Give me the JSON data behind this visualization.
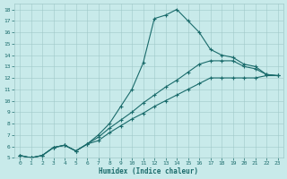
{
  "xlabel": "Humidex (Indice chaleur)",
  "xlim": [
    -0.5,
    23.5
  ],
  "ylim": [
    5,
    18.5
  ],
  "xticks": [
    0,
    1,
    2,
    3,
    4,
    5,
    6,
    7,
    8,
    9,
    10,
    11,
    12,
    13,
    14,
    15,
    16,
    17,
    18,
    19,
    20,
    21,
    22,
    23
  ],
  "yticks": [
    5,
    6,
    7,
    8,
    9,
    10,
    11,
    12,
    13,
    14,
    15,
    16,
    17,
    18
  ],
  "bg_color": "#c8eaea",
  "grid_color": "#a0c8c8",
  "line_color": "#1a6b6b",
  "line1_x": [
    0,
    1,
    2,
    3,
    4,
    5,
    6,
    7,
    8,
    9,
    10,
    11,
    12,
    13,
    14,
    15,
    16,
    17,
    18,
    19,
    20,
    21,
    22,
    23
  ],
  "line1_y": [
    5.2,
    5.0,
    5.2,
    5.9,
    6.1,
    5.6,
    6.2,
    7.0,
    8.0,
    9.5,
    11.0,
    13.3,
    17.2,
    17.5,
    18.0,
    17.0,
    16.0,
    14.5,
    14.0,
    13.8,
    13.2,
    13.0,
    12.3,
    12.2
  ],
  "line2_x": [
    0,
    1,
    2,
    3,
    4,
    5,
    6,
    7,
    8,
    9,
    10,
    11,
    12,
    13,
    14,
    15,
    16,
    17,
    18,
    19,
    20,
    21,
    22,
    23
  ],
  "line2_y": [
    5.2,
    5.0,
    5.2,
    5.9,
    6.1,
    5.6,
    6.2,
    6.8,
    7.6,
    8.3,
    9.0,
    9.8,
    10.5,
    11.2,
    11.8,
    12.5,
    13.2,
    13.5,
    13.5,
    13.5,
    13.0,
    12.8,
    12.3,
    12.2
  ],
  "line3_x": [
    0,
    1,
    2,
    3,
    4,
    5,
    6,
    7,
    8,
    9,
    10,
    11,
    12,
    13,
    14,
    15,
    16,
    17,
    18,
    19,
    20,
    21,
    22,
    23
  ],
  "line3_y": [
    5.2,
    5.0,
    5.2,
    5.9,
    6.1,
    5.6,
    6.2,
    6.5,
    7.2,
    7.8,
    8.4,
    8.9,
    9.5,
    10.0,
    10.5,
    11.0,
    11.5,
    12.0,
    12.0,
    12.0,
    12.0,
    12.0,
    12.2,
    12.2
  ]
}
